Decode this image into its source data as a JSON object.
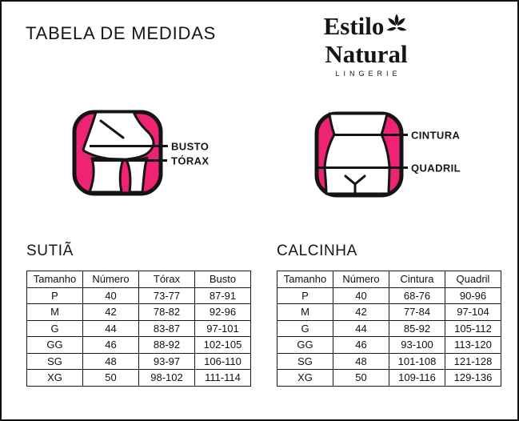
{
  "page": {
    "title": "TABELA DE MEDIDAS"
  },
  "brand": {
    "name_line1": "Estilo",
    "name_line2": "Natural",
    "tagline": "LINGERIE",
    "icon": "flower-icon"
  },
  "colors": {
    "accent_pink": "#EE2374",
    "ink": "#151515"
  },
  "diagrams": {
    "bra": {
      "labels": [
        "BUSTO",
        "TÓRAX"
      ]
    },
    "panty": {
      "labels": [
        "CINTURA",
        "QUADRIL"
      ]
    }
  },
  "chart_data": [
    {
      "type": "table",
      "title": "SUTIÃ",
      "columns": [
        "Tamanho",
        "Número",
        "Tórax",
        "Busto"
      ],
      "rows": [
        [
          "P",
          "40",
          "73-77",
          "87-91"
        ],
        [
          "M",
          "42",
          "78-82",
          "92-96"
        ],
        [
          "G",
          "44",
          "83-87",
          "97-101"
        ],
        [
          "GG",
          "46",
          "88-92",
          "102-105"
        ],
        [
          "SG",
          "48",
          "93-97",
          "106-110"
        ],
        [
          "XG",
          "50",
          "98-102",
          "111-114"
        ]
      ]
    },
    {
      "type": "table",
      "title": "CALCINHA",
      "columns": [
        "Tamanho",
        "Número",
        "Cintura",
        "Quadril"
      ],
      "rows": [
        [
          "P",
          "40",
          "68-76",
          "90-96"
        ],
        [
          "M",
          "42",
          "77-84",
          "97-104"
        ],
        [
          "G",
          "44",
          "85-92",
          "105-112"
        ],
        [
          "GG",
          "46",
          "93-100",
          "113-120"
        ],
        [
          "SG",
          "48",
          "101-108",
          "121-128"
        ],
        [
          "XG",
          "50",
          "109-116",
          "129-136"
        ]
      ]
    }
  ]
}
